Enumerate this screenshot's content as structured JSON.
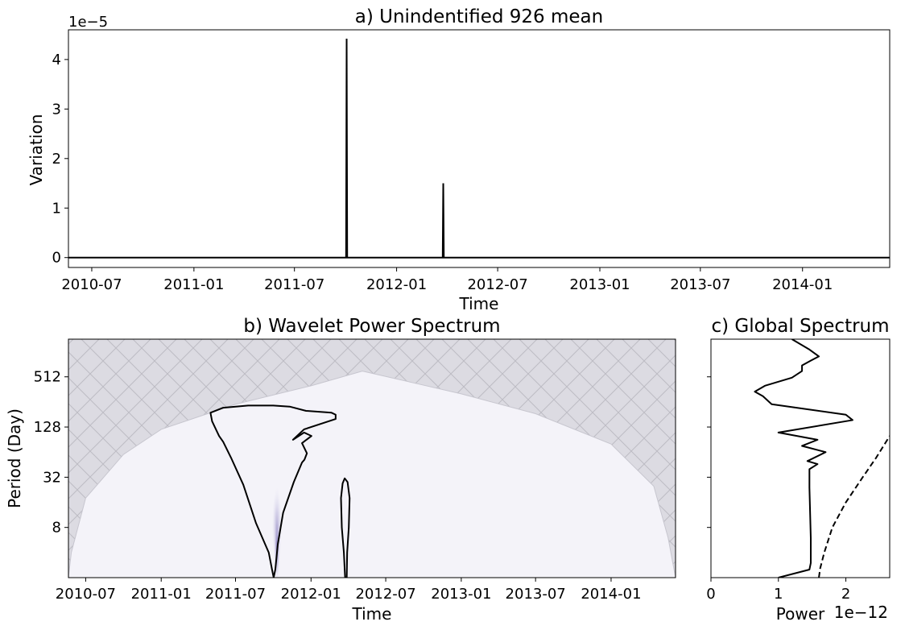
{
  "chart_data": [
    {
      "type": "line",
      "title": "a) Unindentified 926 mean",
      "xlabel": "Time",
      "ylabel": "Variation",
      "offset_text": "1e−5",
      "x_ticks": [
        "2010-07",
        "2011-01",
        "2011-07",
        "2012-01",
        "2012-07",
        "2013-01",
        "2013-07",
        "2014-01"
      ],
      "y_ticks": [
        "0",
        "1",
        "2",
        "3",
        "4"
      ],
      "xlim": [
        "2010-05-20",
        "2014-06-07"
      ],
      "ylim": [
        -0.2,
        4.6
      ],
      "y_scale": "x1e-5",
      "line_color": "#000000",
      "series": [
        {
          "x": [
            "2010-05-20",
            "2011-10-02",
            "2011-10-03",
            "2011-10-04",
            "2011-10-05",
            "2012-03-24",
            "2012-03-25",
            "2012-03-26",
            "2014-06-07"
          ],
          "values": [
            0,
            0,
            4.42,
            0,
            0,
            0,
            1.5,
            0,
            0
          ]
        }
      ]
    },
    {
      "type": "heatmap",
      "title": "b) Wavelet Power Spectrum",
      "xlabel": "Time",
      "ylabel": "Period (Day)",
      "x_ticks": [
        "2010-07",
        "2011-01",
        "2011-07",
        "2012-01",
        "2012-07",
        "2013-01",
        "2013-07",
        "2014-01"
      ],
      "y_ticks": [
        "8",
        "32",
        "128",
        "512"
      ],
      "y_scale": "log2",
      "xlim": [
        "2010-05-20",
        "2014-06-07"
      ],
      "ylim": [
        2,
        1448
      ],
      "colors": {
        "background": "#f4f3f9",
        "hatch_fill": "#dcdbe2",
        "hatch_line": "#bdbcc4",
        "hot_spot": "#7d6fb2",
        "contour": "#000000"
      },
      "cone_of_influence": {
        "x": [
          "2010-05-20",
          "2010-05-27",
          "2010-07-01",
          "2010-10-01",
          "2011-01-01",
          "2011-07-01",
          "2012-01-01",
          "2012-05-05",
          "2012-09-01",
          "2013-01-01",
          "2013-07-01",
          "2014-01-01",
          "2014-04-15",
          "2014-05-20",
          "2014-06-07"
        ],
        "period": [
          2,
          4,
          18,
          60,
          120,
          240,
          400,
          600,
          440,
          320,
          185,
          80,
          25,
          6,
          2
        ]
      },
      "contours": [
        {
          "x": [
            "2011-05-01",
            "2011-05-05",
            "2011-05-22",
            "2011-06-01",
            "2011-06-20",
            "2011-07-20",
            "2011-08-20",
            "2011-09-20",
            "2011-09-28",
            "2011-10-02",
            "2011-10-06",
            "2011-10-12",
            "2011-10-25",
            "2011-11-20",
            "2011-12-10",
            "2011-12-16",
            "2011-12-22",
            "2011-12-10",
            "2012-01-02",
            "2011-12-15",
            "2011-11-18",
            "2011-12-15",
            "2012-03-01",
            "2012-03-01",
            "2012-02-20",
            "2011-12-20",
            "2011-11-10",
            "2011-10-01",
            "2011-08-01",
            "2011-06-01",
            "2011-05-01"
          ],
          "period": [
            190,
            150,
            100,
            85,
            55,
            26,
            9,
            4,
            2.5,
            2,
            2.5,
            5,
            12,
            28,
            48,
            52,
            62,
            82,
            100,
            110,
            90,
            120,
            160,
            180,
            190,
            200,
            225,
            232,
            232,
            218,
            190
          ]
        },
        {
          "x": [
            "2012-03-14",
            "2012-03-18",
            "2012-03-23",
            "2012-03-30",
            "2012-04-04",
            "2012-04-02",
            "2012-03-29",
            "2012-03-28",
            "2012-03-24",
            "2012-03-21",
            "2012-03-16",
            "2012-03-14"
          ],
          "period": [
            18,
            27,
            31,
            28,
            18,
            8,
            4,
            2,
            2,
            4,
            8,
            18
          ]
        }
      ]
    },
    {
      "type": "line",
      "title": "c) Global Spectrum",
      "xlabel": "Power",
      "offset_text": "1e−12",
      "x_ticks": [
        "0",
        "1",
        "2"
      ],
      "xlim": [
        0,
        2.65
      ],
      "y_scale": "log2",
      "ylim": [
        2,
        1448
      ],
      "series": [
        {
          "style": "solid",
          "power": [
            1.0,
            1.46,
            1.48,
            1.48,
            1.47,
            1.46,
            1.46,
            1.58,
            1.43,
            1.7,
            1.35,
            1.58,
            1.0,
            2.1,
            2.0,
            0.9,
            0.77,
            0.65,
            0.8,
            1.2,
            1.35,
            1.35,
            1.48,
            1.6,
            1.45,
            1.2
          ],
          "period": [
            2,
            2.5,
            3,
            6,
            12,
            24,
            40,
            46,
            50,
            64,
            76,
            90,
            110,
            155,
            180,
            240,
            300,
            340,
            400,
            500,
            600,
            700,
            800,
            900,
            1100,
            1448
          ]
        },
        {
          "style": "dashed",
          "power": [
            1.6,
            1.62,
            1.68,
            1.8,
            2.0,
            2.25,
            2.45,
            2.65
          ],
          "period": [
            2,
            2.6,
            4,
            8,
            16,
            32,
            55,
            100
          ]
        }
      ]
    }
  ]
}
